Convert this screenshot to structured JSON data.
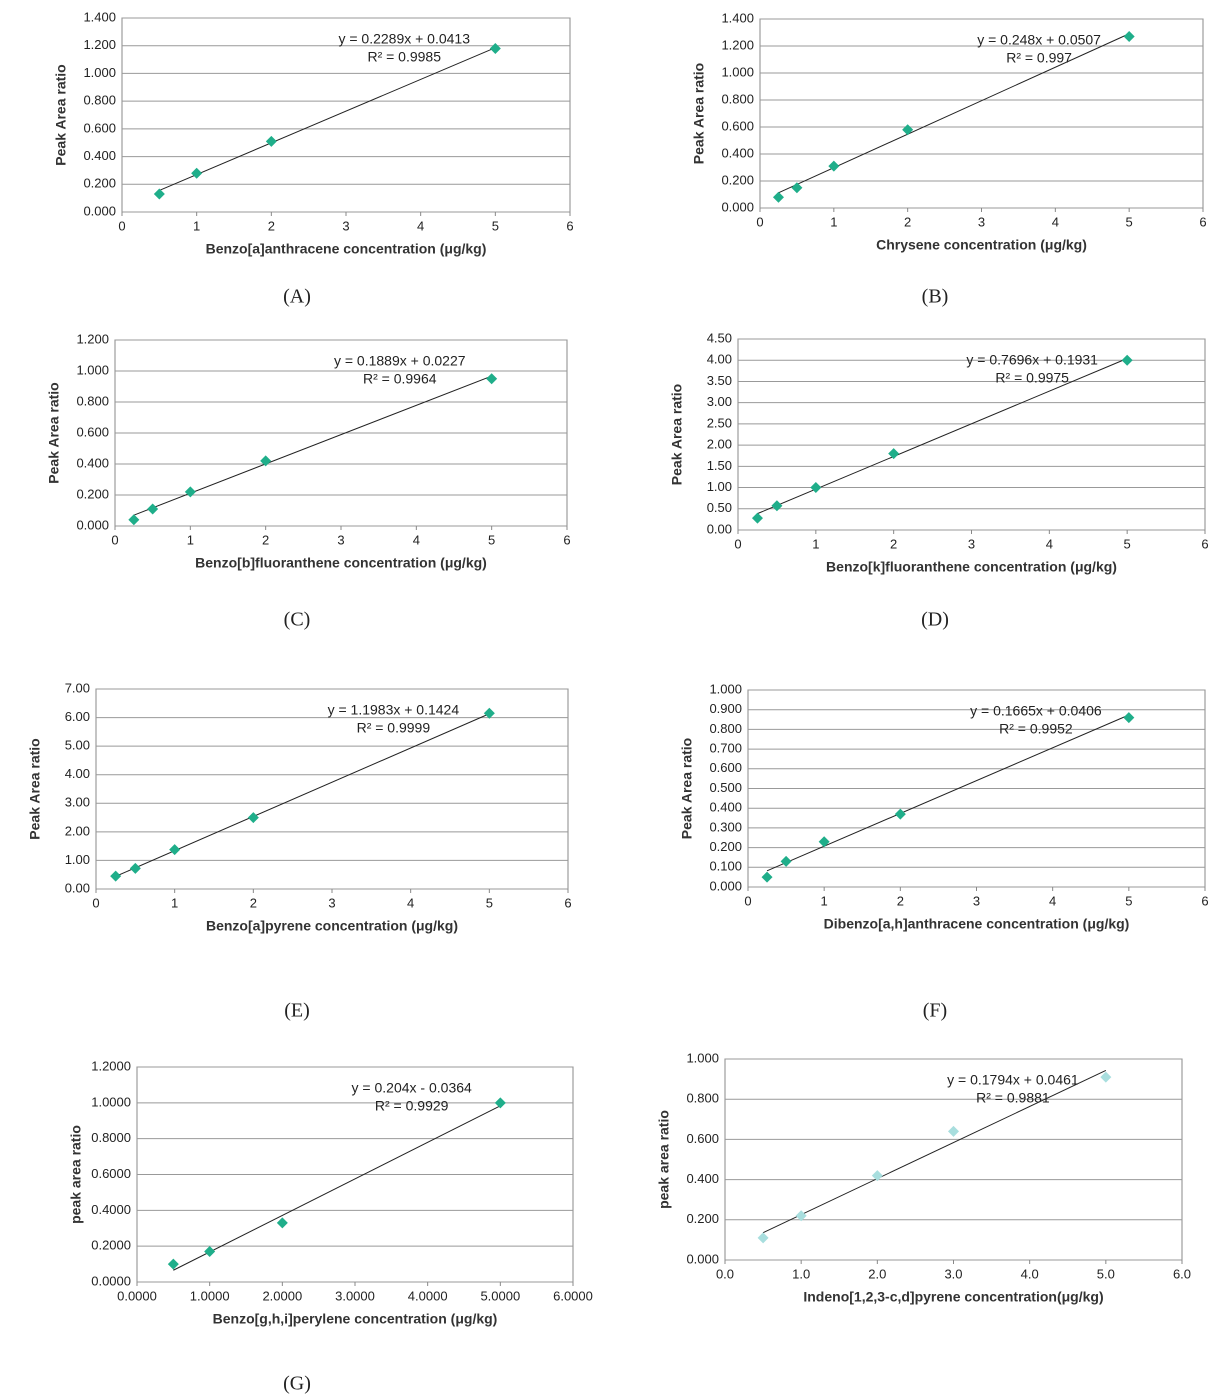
{
  "chart_data": [
    {
      "type": "scatter",
      "panel_label": "(A)",
      "xlabel": "Benzo[a]anthracene concentration (μg/kg)",
      "ylabel": "Peak Area ratio",
      "color": "#1fae8a",
      "x": [
        0.5,
        1,
        2,
        5
      ],
      "values": [
        0.13,
        0.28,
        0.51,
        1.18
      ],
      "equation": "y = 0.2289x + 0.0413",
      "r2": "R² = 0.9985",
      "trendline": {
        "slope": 0.2289,
        "intercept": 0.0413
      },
      "xlim": [
        0,
        6
      ],
      "xticks": [
        0,
        1,
        2,
        3,
        4,
        5,
        6
      ],
      "ylim": [
        0,
        1.4
      ],
      "yticks": [
        {
          "value": 0,
          "label": "0.000"
        },
        {
          "value": 0.2,
          "label": "0.200"
        },
        {
          "value": 0.4,
          "label": "0.400"
        },
        {
          "value": 0.6,
          "label": "0.600"
        },
        {
          "value": 0.8,
          "label": "0.800"
        },
        {
          "value": 1.0,
          "label": "1.000"
        },
        {
          "value": 1.2,
          "label": "1.200"
        },
        {
          "value": 1.4,
          "label": "1.400"
        }
      ],
      "grid": true
    },
    {
      "type": "scatter",
      "panel_label": "(B)",
      "xlabel": "Chrysene concentration (μg/kg)",
      "ylabel": "Peak Area ratio",
      "color": "#1fae8a",
      "x": [
        0.25,
        0.5,
        1,
        2,
        5
      ],
      "values": [
        0.08,
        0.15,
        0.31,
        0.58,
        1.27
      ],
      "equation": "y = 0.248x + 0.0507",
      "r2": "R² = 0.997",
      "trendline": {
        "slope": 0.248,
        "intercept": 0.0507
      },
      "xlim": [
        0,
        6
      ],
      "xticks": [
        0,
        1,
        2,
        3,
        4,
        5,
        6
      ],
      "ylim": [
        0,
        1.4
      ],
      "yticks": [
        {
          "value": 0,
          "label": "0.000"
        },
        {
          "value": 0.2,
          "label": "0.200"
        },
        {
          "value": 0.4,
          "label": "0.400"
        },
        {
          "value": 0.6,
          "label": "0.600"
        },
        {
          "value": 0.8,
          "label": "0.800"
        },
        {
          "value": 1.0,
          "label": "1.000"
        },
        {
          "value": 1.2,
          "label": "1.200"
        },
        {
          "value": 1.4,
          "label": "1.400"
        }
      ],
      "grid": true
    },
    {
      "type": "scatter",
      "panel_label": "(C)",
      "xlabel": "Benzo[b]fluoranthene concentration (μg/kg)",
      "ylabel": "Peak Area ratio",
      "color": "#1fae8a",
      "x": [
        0.25,
        0.5,
        1,
        2,
        5
      ],
      "values": [
        0.04,
        0.11,
        0.22,
        0.42,
        0.95
      ],
      "equation": "y = 0.1889x + 0.0227",
      "r2": "R² = 0.9964",
      "trendline": {
        "slope": 0.1889,
        "intercept": 0.0227
      },
      "xlim": [
        0,
        6
      ],
      "xticks": [
        0,
        1,
        2,
        3,
        4,
        5,
        6
      ],
      "ylim": [
        0,
        1.2
      ],
      "yticks": [
        {
          "value": 0,
          "label": "0.000"
        },
        {
          "value": 0.2,
          "label": "0.200"
        },
        {
          "value": 0.4,
          "label": "0.400"
        },
        {
          "value": 0.6,
          "label": "0.600"
        },
        {
          "value": 0.8,
          "label": "0.800"
        },
        {
          "value": 1.0,
          "label": "1.000"
        },
        {
          "value": 1.2,
          "label": "1.200"
        }
      ],
      "grid": true
    },
    {
      "type": "scatter",
      "panel_label": "(D)",
      "xlabel": "Benzo[k]fluoranthene concentration (μg/kg)",
      "ylabel": "Peak Area ratio",
      "color": "#1fae8a",
      "x": [
        0.25,
        0.5,
        1,
        2,
        5
      ],
      "values": [
        0.28,
        0.57,
        1.0,
        1.8,
        4.0
      ],
      "equation": "y = 0.7696x + 0.1931",
      "r2": "R² = 0.9975",
      "trendline": {
        "slope": 0.7696,
        "intercept": 0.1931
      },
      "xlim": [
        0,
        6
      ],
      "xticks": [
        0,
        1,
        2,
        3,
        4,
        5,
        6
      ],
      "ylim": [
        0,
        4.5
      ],
      "yticks": [
        {
          "value": 0,
          "label": "0.00"
        },
        {
          "value": 0.5,
          "label": "0.50"
        },
        {
          "value": 1.0,
          "label": "1.00"
        },
        {
          "value": 1.5,
          "label": "1.50"
        },
        {
          "value": 2.0,
          "label": "2.00"
        },
        {
          "value": 2.5,
          "label": "2.50"
        },
        {
          "value": 3.0,
          "label": "3.00"
        },
        {
          "value": 3.5,
          "label": "3.50"
        },
        {
          "value": 4.0,
          "label": "4.00"
        },
        {
          "value": 4.5,
          "label": "4.50"
        }
      ],
      "grid": true
    },
    {
      "type": "scatter",
      "panel_label": "(E)",
      "xlabel": "Benzo[a]pyrene concentration (μg/kg)",
      "ylabel": "Peak Area ratio",
      "color": "#1fae8a",
      "x": [
        0.25,
        0.5,
        1,
        2,
        5
      ],
      "values": [
        0.45,
        0.72,
        1.38,
        2.5,
        6.15
      ],
      "equation": "y = 1.1983x + 0.1424",
      "r2": "R² = 0.9999",
      "trendline": {
        "slope": 1.1983,
        "intercept": 0.1424
      },
      "xlim": [
        0,
        6
      ],
      "xticks": [
        0,
        1,
        2,
        3,
        4,
        5,
        6
      ],
      "ylim": [
        0,
        7
      ],
      "yticks": [
        {
          "value": 0,
          "label": "0.00"
        },
        {
          "value": 1,
          "label": "1.00"
        },
        {
          "value": 2,
          "label": "2.00"
        },
        {
          "value": 3,
          "label": "3.00"
        },
        {
          "value": 4,
          "label": "4.00"
        },
        {
          "value": 5,
          "label": "5.00"
        },
        {
          "value": 6,
          "label": "6.00"
        },
        {
          "value": 7,
          "label": "7.00"
        }
      ],
      "grid": true
    },
    {
      "type": "scatter",
      "panel_label": "(F)",
      "xlabel": "Dibenzo[a,h]anthracene concentration (μg/kg)",
      "ylabel": "Peak Area ratio",
      "color": "#1fae8a",
      "x": [
        0.25,
        0.5,
        1,
        2,
        5
      ],
      "values": [
        0.05,
        0.13,
        0.23,
        0.37,
        0.86
      ],
      "equation": "y = 0.1665x + 0.0406",
      "r2": "R² = 0.9952",
      "trendline": {
        "slope": 0.1665,
        "intercept": 0.0406
      },
      "xlim": [
        0,
        6
      ],
      "xticks": [
        0,
        1,
        2,
        3,
        4,
        5,
        6
      ],
      "ylim": [
        0,
        1.0
      ],
      "yticks": [
        {
          "value": 0,
          "label": "0.000"
        },
        {
          "value": 0.1,
          "label": "0.100"
        },
        {
          "value": 0.2,
          "label": "0.200"
        },
        {
          "value": 0.3,
          "label": "0.300"
        },
        {
          "value": 0.4,
          "label": "0.400"
        },
        {
          "value": 0.5,
          "label": "0.500"
        },
        {
          "value": 0.6,
          "label": "0.600"
        },
        {
          "value": 0.7,
          "label": "0.700"
        },
        {
          "value": 0.8,
          "label": "0.800"
        },
        {
          "value": 0.9,
          "label": "0.900"
        },
        {
          "value": 1.0,
          "label": "1.000"
        }
      ],
      "grid": true
    },
    {
      "type": "scatter",
      "panel_label": "(G)",
      "xlabel": "Benzo[g,h,i]perylene concentration (μg/kg)",
      "ylabel": "peak area ratio",
      "color": "#1fae8a",
      "x": [
        0.5,
        1,
        2,
        5
      ],
      "values": [
        0.1,
        0.17,
        0.33,
        1.0
      ],
      "equation": "y = 0.204x - 0.0364",
      "r2": "R² = 0.9929",
      "trendline": {
        "slope": 0.204,
        "intercept": -0.0364
      },
      "xlim": [
        0,
        6
      ],
      "xticks": [
        {
          "value": 0,
          "label": "0.0000"
        },
        {
          "value": 1,
          "label": "1.0000"
        },
        {
          "value": 2,
          "label": "2.0000"
        },
        {
          "value": 3,
          "label": "3.0000"
        },
        {
          "value": 4,
          "label": "4.0000"
        },
        {
          "value": 5,
          "label": "5.0000"
        },
        {
          "value": 6,
          "label": "6.0000"
        }
      ],
      "ylim": [
        0,
        1.2
      ],
      "yticks": [
        {
          "value": 0,
          "label": "0.0000"
        },
        {
          "value": 0.2,
          "label": "0.2000"
        },
        {
          "value": 0.4,
          "label": "0.4000"
        },
        {
          "value": 0.6,
          "label": "0.6000"
        },
        {
          "value": 0.8,
          "label": "0.8000"
        },
        {
          "value": 1.0,
          "label": "1.0000"
        },
        {
          "value": 1.2,
          "label": "1.2000"
        }
      ],
      "grid": true
    },
    {
      "type": "scatter",
      "xlabel": "Indeno[1,2,3-c,d]pyrene concentration(μg/kg)",
      "ylabel": "peak area ratio",
      "color": "#a8dede",
      "x": [
        0.5,
        1,
        2,
        3,
        5
      ],
      "values": [
        0.11,
        0.22,
        0.42,
        0.64,
        0.91
      ],
      "equation": "y = 0.1794x + 0.0461",
      "r2": "R² = 0.9881",
      "trendline": {
        "slope": 0.1794,
        "intercept": 0.0461
      },
      "xlim": [
        0,
        6
      ],
      "xticks": [
        {
          "value": 0,
          "label": "0.0"
        },
        {
          "value": 1,
          "label": "1.0"
        },
        {
          "value": 2,
          "label": "2.0"
        },
        {
          "value": 3,
          "label": "3.0"
        },
        {
          "value": 4,
          "label": "4.0"
        },
        {
          "value": 5,
          "label": "5.0"
        },
        {
          "value": 6,
          "label": "6.0"
        }
      ],
      "ylim": [
        0,
        1.0
      ],
      "yticks": [
        {
          "value": 0,
          "label": "0.000"
        },
        {
          "value": 0.2,
          "label": "0.200"
        },
        {
          "value": 0.4,
          "label": "0.400"
        },
        {
          "value": 0.6,
          "label": "0.600"
        },
        {
          "value": 0.8,
          "label": "0.800"
        },
        {
          "value": 1.0,
          "label": "1.000"
        }
      ],
      "grid": true
    }
  ]
}
